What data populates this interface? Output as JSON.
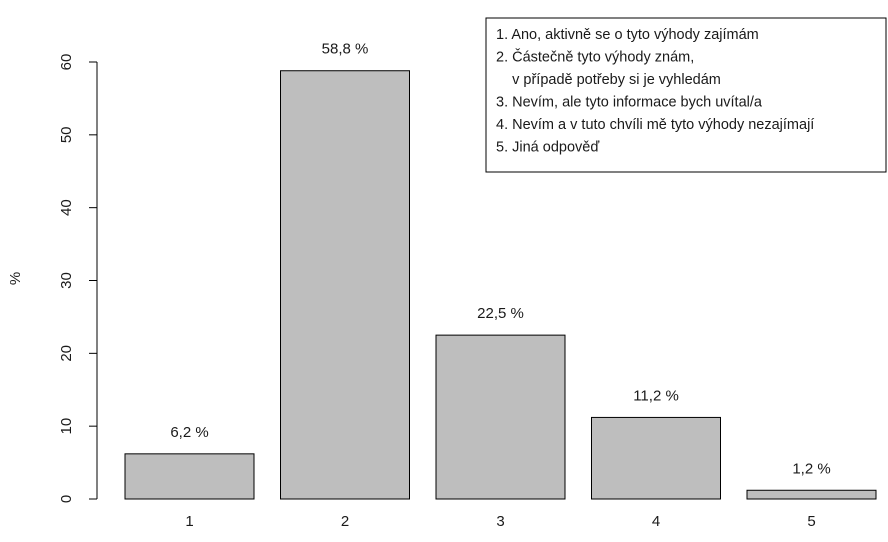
{
  "chart_data": {
    "type": "bar",
    "categories": [
      "1",
      "2",
      "3",
      "4",
      "5"
    ],
    "values": [
      6.2,
      58.8,
      22.5,
      11.2,
      1.2
    ],
    "data_labels": [
      "6,2 %",
      "58,8 %",
      "22,5 %",
      "11,2 %",
      "1,2 %"
    ],
    "title": "",
    "xlabel": "",
    "ylabel": "%",
    "ylim": [
      0,
      60
    ],
    "yticks": [
      0,
      10,
      20,
      30,
      40,
      50,
      60
    ],
    "y_tick_labels": [
      "0",
      "10",
      "20",
      "30",
      "40",
      "50",
      "60"
    ],
    "bar_color": "#bebebe",
    "bar_border_color": "#000000",
    "grid": false,
    "legend": {
      "placement": "top-right",
      "lines": [
        "1. Ano, aktivně se o tyto výhody zajímám",
        "2. Částečně tyto výhody znám,",
        "    v případě potřeby si je vyhledám",
        "3. Nevím, ale tyto informace bych uvítal/a",
        "4. Nevím a v tuto chvíli mě tyto výhody nezajímají",
        "5. Jiná odpověď"
      ]
    }
  }
}
